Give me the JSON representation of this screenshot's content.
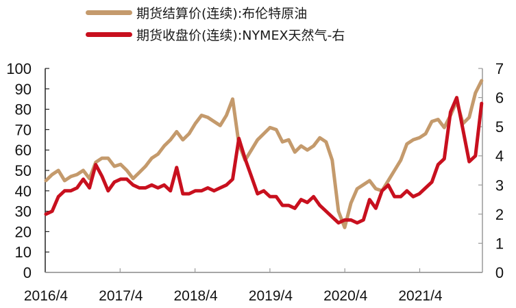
{
  "legend": {
    "items": [
      {
        "label": "期货结算价(连续):布伦特原油",
        "color": "#C49A6C"
      },
      {
        "label": "期货收盘价(连续):NYMEX天然气-右",
        "color": "#C8101E"
      }
    ]
  },
  "colors": {
    "brent": "#C49A6C",
    "natgas": "#C8101E",
    "left_axis": "#222222",
    "right_axis": "#9a9a9a",
    "bottom_axis": "#9a9a9a"
  },
  "chart_data": {
    "type": "line",
    "title": "",
    "xlabel": "",
    "ylabel": "",
    "y2label": "",
    "x_tick_labels": [
      "2016/4",
      "2017/4",
      "2018/4",
      "2019/4",
      "2020/4",
      "2021/4"
    ],
    "ylim": [
      0,
      100
    ],
    "y_ticks": [
      0,
      10,
      20,
      30,
      40,
      50,
      60,
      70,
      80,
      90,
      100
    ],
    "y2lim": [
      0,
      7
    ],
    "y2_ticks": [
      0,
      1,
      2,
      3,
      4,
      5,
      6,
      7
    ],
    "grid": false,
    "legend_position": "top",
    "x": [
      "2016/4",
      "2016/5",
      "2016/6",
      "2016/7",
      "2016/8",
      "2016/9",
      "2016/10",
      "2016/11",
      "2016/12",
      "2017/1",
      "2017/2",
      "2017/3",
      "2017/4",
      "2017/5",
      "2017/6",
      "2017/7",
      "2017/8",
      "2017/9",
      "2017/10",
      "2017/11",
      "2017/12",
      "2018/1",
      "2018/2",
      "2018/3",
      "2018/4",
      "2018/5",
      "2018/6",
      "2018/7",
      "2018/8",
      "2018/9",
      "2018/10",
      "2018/11",
      "2018/12",
      "2019/1",
      "2019/2",
      "2019/3",
      "2019/4",
      "2019/5",
      "2019/6",
      "2019/7",
      "2019/8",
      "2019/9",
      "2019/10",
      "2019/11",
      "2019/12",
      "2020/1",
      "2020/2",
      "2020/3",
      "2020/4",
      "2020/5",
      "2020/6",
      "2020/7",
      "2020/8",
      "2020/9",
      "2020/10",
      "2020/11",
      "2020/12",
      "2021/1",
      "2021/2",
      "2021/3",
      "2021/4",
      "2021/5",
      "2021/6",
      "2021/7",
      "2021/8",
      "2021/9",
      "2021/10",
      "2021/11",
      "2021/12",
      "2022/1",
      "2022/2"
    ],
    "series": [
      {
        "name": "期货结算价(连续):布伦特原油",
        "axis": "left",
        "color": "#C49A6C",
        "values": [
          45,
          48,
          50,
          45,
          47,
          48,
          50,
          46,
          54,
          56,
          56,
          52,
          53,
          50,
          46,
          49,
          52,
          56,
          58,
          62,
          65,
          69,
          65,
          68,
          73,
          77,
          76,
          74,
          72,
          77,
          85,
          63,
          55,
          60,
          65,
          68,
          71,
          70,
          64,
          65,
          59,
          62,
          60,
          62,
          66,
          64,
          55,
          30,
          22,
          34,
          41,
          43,
          45,
          41,
          40,
          45,
          50,
          55,
          63,
          65,
          66,
          68,
          74,
          75,
          71,
          77,
          84,
          73,
          76,
          88,
          94
        ]
      },
      {
        "name": "期货收盘价(连续):NYMEX天然气-右",
        "axis": "right",
        "color": "#C8101E",
        "values": [
          2.0,
          2.1,
          2.6,
          2.8,
          2.8,
          2.9,
          3.2,
          2.9,
          3.7,
          3.3,
          2.8,
          3.1,
          3.2,
          3.2,
          3.0,
          2.9,
          2.9,
          3.0,
          2.9,
          3.0,
          2.8,
          3.6,
          2.7,
          2.7,
          2.8,
          2.8,
          2.9,
          2.8,
          2.9,
          3.0,
          3.2,
          4.6,
          3.9,
          3.3,
          2.7,
          2.8,
          2.6,
          2.6,
          2.3,
          2.3,
          2.2,
          2.5,
          2.4,
          2.6,
          2.3,
          2.1,
          1.9,
          1.7,
          1.8,
          1.8,
          1.7,
          1.8,
          2.5,
          2.2,
          2.8,
          3.0,
          2.6,
          2.6,
          2.8,
          2.6,
          2.7,
          2.9,
          3.1,
          3.7,
          3.9,
          5.5,
          6.0,
          4.9,
          3.8,
          4.0,
          5.8
        ]
      }
    ]
  }
}
